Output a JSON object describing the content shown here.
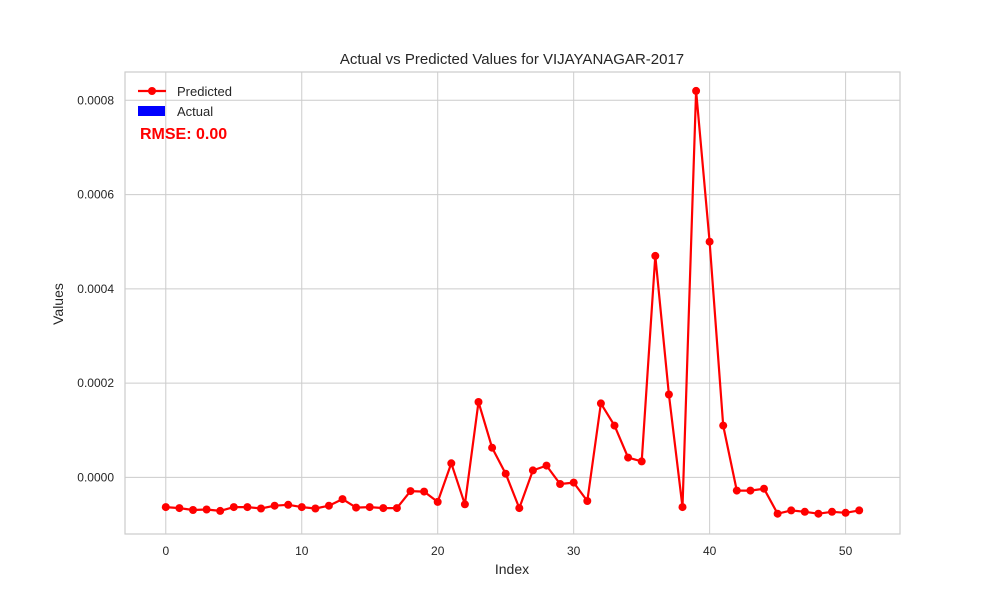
{
  "chart_data": {
    "type": "line",
    "title": "Actual vs Predicted Values for VIJAYANAGAR-2017",
    "xlabel": "Index",
    "ylabel": "Values",
    "xlim": [
      -3,
      54
    ],
    "ylim": [
      -0.00012,
      0.00086
    ],
    "xticks": [
      0,
      10,
      20,
      30,
      40,
      50
    ],
    "xtick_labels": [
      "0",
      "10",
      "20",
      "30",
      "40",
      "50"
    ],
    "yticks": [
      0.0,
      0.0002,
      0.0004,
      0.0006,
      0.0008
    ],
    "ytick_labels": [
      "0.0000",
      "0.0002",
      "0.0004",
      "0.0006",
      "0.0008"
    ],
    "grid": true,
    "legend_position": "top-left",
    "series": [
      {
        "name": "Predicted",
        "color": "#ff0000",
        "marker": "circle",
        "x": [
          0,
          1,
          2,
          3,
          4,
          5,
          6,
          7,
          8,
          9,
          10,
          11,
          12,
          13,
          14,
          15,
          16,
          17,
          18,
          19,
          20,
          21,
          22,
          23,
          24,
          25,
          26,
          27,
          28,
          29,
          30,
          31,
          32,
          33,
          34,
          35,
          36,
          37,
          38,
          39,
          40,
          41,
          42,
          43,
          44,
          45,
          46,
          47,
          48,
          49,
          50,
          51
        ],
        "values": [
          -6.3e-05,
          -6.5e-05,
          -6.9e-05,
          -6.8e-05,
          -7.1e-05,
          -6.3e-05,
          -6.3e-05,
          -6.6e-05,
          -6e-05,
          -5.8e-05,
          -6.3e-05,
          -6.6e-05,
          -6e-05,
          -4.6e-05,
          -6.4e-05,
          -6.3e-05,
          -6.5e-05,
          -6.5e-05,
          -2.9e-05,
          -3e-05,
          -5.2e-05,
          3e-05,
          -5.7e-05,
          0.00016,
          6.3e-05,
          8e-06,
          -6.5e-05,
          1.5e-05,
          2.5e-05,
          -1.4e-05,
          -1.1e-05,
          -5e-05,
          0.000157,
          0.00011,
          4.2e-05,
          3.4e-05,
          0.00047,
          0.000176,
          -6.3e-05,
          0.00082,
          0.0005,
          0.00011,
          -2.8e-05,
          -2.8e-05,
          -2.4e-05,
          -7.7e-05,
          -7e-05,
          -7.3e-05,
          -7.7e-05,
          -7.3e-05,
          -7.5e-05,
          -7e-05
        ]
      },
      {
        "name": "Actual",
        "color": "#0000ff",
        "type": "bar",
        "values": []
      }
    ],
    "annotations": [
      {
        "text": "RMSE: 0.00",
        "color": "#ff0000",
        "position": "top-left"
      }
    ]
  }
}
